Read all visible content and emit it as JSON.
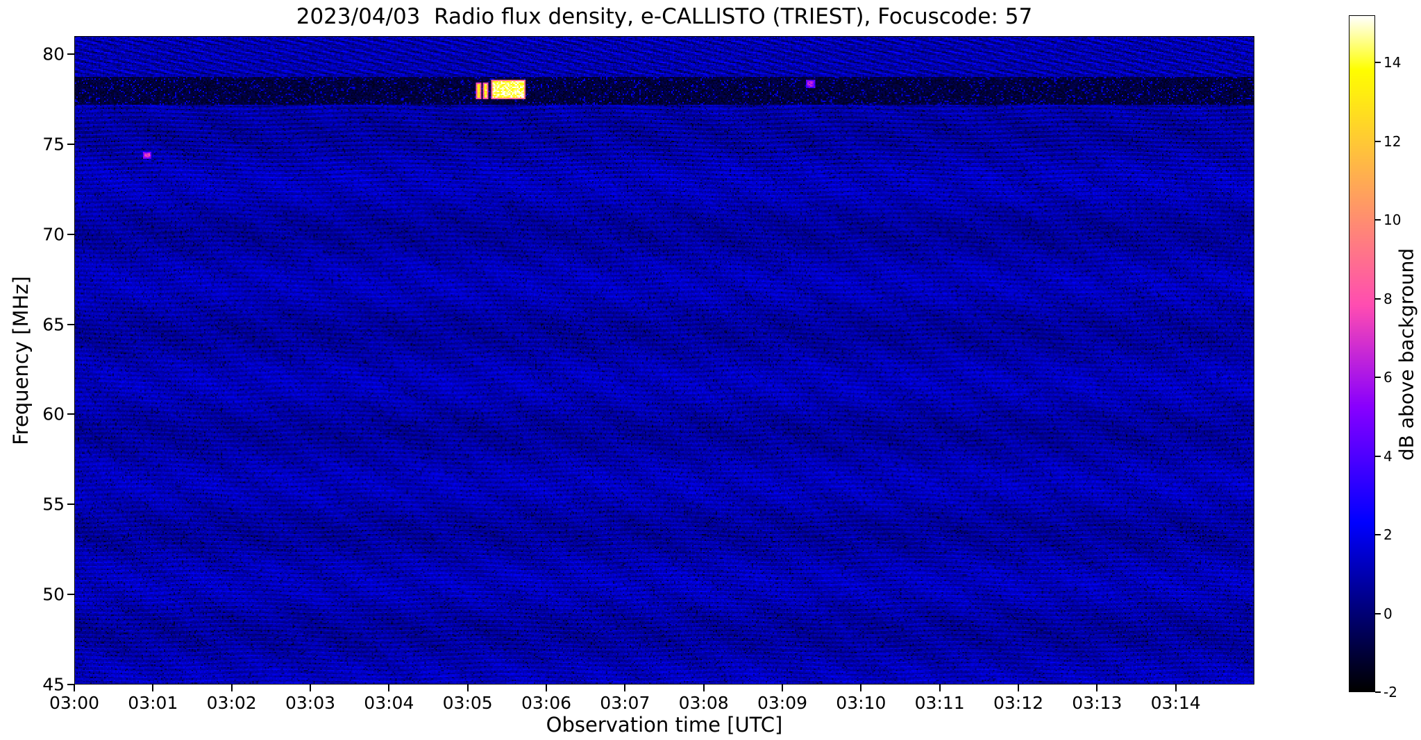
{
  "chart_data": {
    "type": "heatmap",
    "title": "2023/04/03  Radio flux density, e-CALLISTO (TRIEST), Focuscode: 57",
    "xlabel": "Observation time [UTC]",
    "ylabel": "Frequency [MHz]",
    "colorbar_label": "dB above background",
    "colormap": "gnuplot2",
    "x_start": "03:00",
    "x_span_minutes": 15,
    "x_ticks": [
      "03:00",
      "03:01",
      "03:02",
      "03:03",
      "03:04",
      "03:05",
      "03:06",
      "03:07",
      "03:08",
      "03:09",
      "03:10",
      "03:11",
      "03:12",
      "03:13",
      "03:14"
    ],
    "ylim": [
      45,
      81
    ],
    "y_ticks": [
      80,
      75,
      70,
      65,
      60,
      55,
      50,
      45
    ],
    "colorbar": {
      "vmin": -2,
      "vmax": 15.2,
      "ticks": [
        14,
        12,
        10,
        8,
        6,
        4,
        2,
        0,
        -2
      ]
    },
    "background": {
      "typical_db": 1.0,
      "range_db": [
        -2,
        2.7
      ],
      "description": "quiet blue noisy background with fine horizontal instrumental fringe stripes and faint broad banding; strong dashed black/blue striping above 78.8 MHz"
    },
    "features": [
      {
        "name": "rfi-suppressed-band",
        "style": "background-band",
        "t0_min": 0,
        "t1_min": 15,
        "f0_mhz": 77.2,
        "f1_mhz": 78.8,
        "level_db": -1.5
      },
      {
        "name": "burst-precursor-1",
        "style": "stamp",
        "t0_min": 5.1,
        "t1_min": 5.16,
        "f0_mhz": 77.6,
        "f1_mhz": 78.45,
        "level_db": 13,
        "fringe_db": 8
      },
      {
        "name": "burst-precursor-2",
        "style": "stamp",
        "t0_min": 5.19,
        "t1_min": 5.25,
        "f0_mhz": 77.6,
        "f1_mhz": 78.45,
        "level_db": 13.5,
        "fringe_db": 8
      },
      {
        "name": "radio-burst-main",
        "style": "stamp",
        "t0_min": 5.3,
        "t1_min": 5.72,
        "f0_mhz": 77.55,
        "f1_mhz": 78.55,
        "level_db": 14.5,
        "fringe_db": 9
      },
      {
        "name": "point-transient",
        "style": "stamp",
        "t0_min": 0.88,
        "t1_min": 0.96,
        "f0_mhz": 74.25,
        "f1_mhz": 74.6,
        "level_db": 7,
        "fringe_db": 5
      },
      {
        "name": "weak-transient",
        "style": "stamp",
        "t0_min": 9.3,
        "t1_min": 9.42,
        "f0_mhz": 78.15,
        "f1_mhz": 78.6,
        "level_db": 6,
        "fringe_db": 4
      }
    ]
  }
}
